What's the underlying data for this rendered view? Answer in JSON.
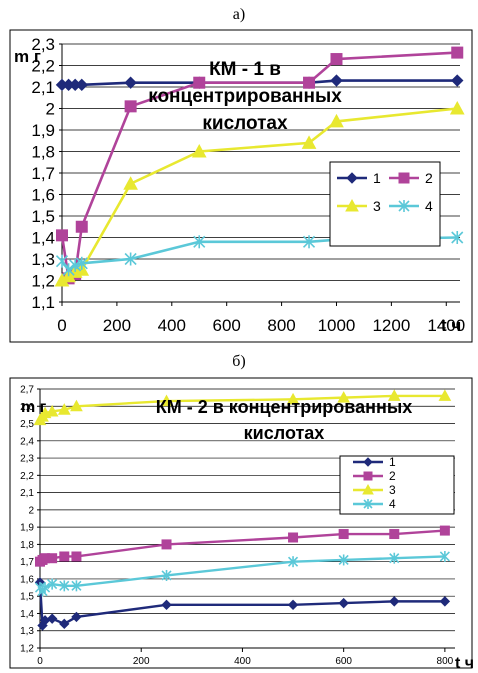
{
  "chart_data": [
    {
      "panel": "а)",
      "type": "line",
      "title_lines": [
        "КМ - 1 в",
        "концентрированных",
        "кислотах"
      ],
      "xlabel": "t ч",
      "ylabel": "m г",
      "xlim": [
        0,
        1450
      ],
      "ylim": [
        1.1,
        2.3
      ],
      "xticks": [
        0,
        200,
        400,
        600,
        800,
        1000,
        1200,
        1400
      ],
      "xtick_labels": [
        "0",
        "200",
        "400",
        "600",
        "800",
        "1000",
        "1200",
        "1400"
      ],
      "yticks": [
        1.1,
        1.2,
        1.3,
        1.4,
        1.5,
        1.6,
        1.7,
        1.8,
        1.9,
        2.0,
        2.1,
        2.2,
        2.3
      ],
      "ytick_labels": [
        "1,1",
        "1,2",
        "1,3",
        "1,4",
        "1,5",
        "1,6",
        "1,7",
        "1,8",
        "1,9",
        "2",
        "2,1",
        "2,2",
        "2,3"
      ],
      "grid": "horizontal",
      "legend_position": "right",
      "series": [
        {
          "name": "1",
          "color": "#1f2a7a",
          "marker": "diamond",
          "x": [
            0,
            24,
            48,
            72,
            250,
            500,
            900,
            1000,
            1440
          ],
          "y": [
            2.11,
            2.11,
            2.11,
            2.11,
            2.12,
            2.12,
            2.12,
            2.13,
            2.13
          ]
        },
        {
          "name": "2",
          "color": "#b0439a",
          "marker": "square",
          "x": [
            0,
            24,
            48,
            72,
            250,
            500,
            900,
            1000,
            1440
          ],
          "y": [
            1.41,
            1.21,
            1.23,
            1.45,
            2.01,
            2.12,
            2.12,
            2.23,
            2.26
          ]
        },
        {
          "name": "3",
          "color": "#e8e830",
          "marker": "triangle",
          "x": [
            0,
            24,
            48,
            72,
            250,
            500,
            900,
            1000,
            1440
          ],
          "y": [
            1.2,
            1.22,
            1.24,
            1.25,
            1.65,
            1.8,
            1.84,
            1.94,
            2.0
          ]
        },
        {
          "name": "4",
          "color": "#5bc8d8",
          "marker": "star",
          "x": [
            0,
            24,
            48,
            72,
            250,
            500,
            900,
            1000,
            1440
          ],
          "y": [
            1.29,
            1.25,
            1.27,
            1.28,
            1.3,
            1.38,
            1.38,
            1.39,
            1.4
          ]
        }
      ]
    },
    {
      "panel": "б)",
      "type": "line",
      "title_lines": [
        "КМ - 2 в концентрированных",
        "кислотах"
      ],
      "xlabel": "t ч",
      "ylabel": "m г",
      "xlim": [
        0,
        820
      ],
      "ylim": [
        1.2,
        2.7
      ],
      "xticks": [
        0,
        200,
        400,
        600,
        800
      ],
      "xtick_labels": [
        "0",
        "200",
        "400",
        "600",
        "800"
      ],
      "yticks": [
        1.2,
        1.3,
        1.4,
        1.5,
        1.6,
        1.7,
        1.8,
        1.9,
        2.0,
        2.1,
        2.2,
        2.3,
        2.4,
        2.5,
        2.6,
        2.7
      ],
      "ytick_labels": [
        "1,2",
        "1,3",
        "1,4",
        "1,5",
        "1,6",
        "1,7",
        "1,8",
        "1,9",
        "2",
        "2,1",
        "2,2",
        "2,3",
        "2,4",
        "2,5",
        "2,6",
        "2,7"
      ],
      "grid": "horizontal",
      "legend_position": "right",
      "series": [
        {
          "name": "1",
          "color": "#1f2a7a",
          "marker": "diamond",
          "x": [
            0,
            5,
            10,
            24,
            48,
            72,
            250,
            500,
            600,
            700,
            800
          ],
          "y": [
            1.58,
            1.33,
            1.36,
            1.37,
            1.34,
            1.38,
            1.45,
            1.45,
            1.46,
            1.47,
            1.47
          ]
        },
        {
          "name": "2",
          "color": "#b0439a",
          "marker": "square",
          "x": [
            0,
            5,
            10,
            24,
            48,
            72,
            250,
            500,
            600,
            700,
            800
          ],
          "y": [
            1.7,
            1.71,
            1.72,
            1.72,
            1.73,
            1.73,
            1.8,
            1.84,
            1.86,
            1.86,
            1.88
          ]
        },
        {
          "name": "3",
          "color": "#e8e830",
          "marker": "triangle",
          "x": [
            0,
            5,
            10,
            24,
            48,
            72,
            250,
            500,
            600,
            700,
            800
          ],
          "y": [
            2.52,
            2.54,
            2.56,
            2.57,
            2.58,
            2.6,
            2.63,
            2.64,
            2.65,
            2.66,
            2.66
          ]
        },
        {
          "name": "4",
          "color": "#5bc8d8",
          "marker": "star",
          "x": [
            0,
            5,
            10,
            24,
            48,
            72,
            250,
            500,
            600,
            700,
            800
          ],
          "y": [
            1.55,
            1.53,
            1.55,
            1.57,
            1.56,
            1.56,
            1.62,
            1.7,
            1.71,
            1.72,
            1.73
          ]
        }
      ]
    }
  ]
}
